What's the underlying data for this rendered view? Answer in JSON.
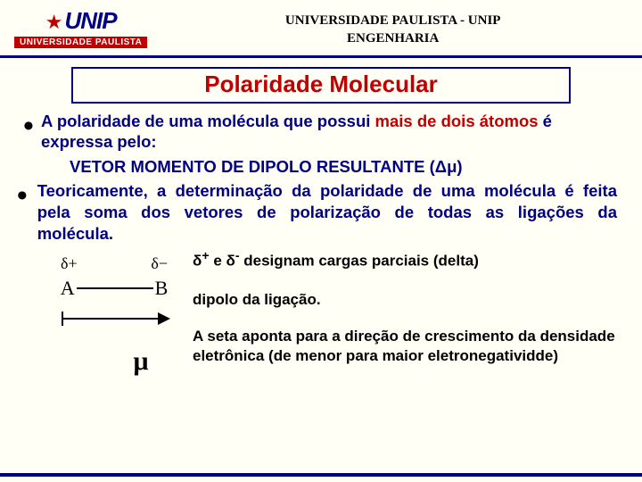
{
  "header": {
    "logo_text": "UNIP",
    "logo_sub": "UNIVERSIDADE PAULISTA",
    "line1": "UNIVERSIDADE PAULISTA - UNIP",
    "line2": "ENGENHARIA"
  },
  "title": "Polaridade Molecular",
  "bullet1": {
    "pre": "A polaridade de uma molécula que possui ",
    "hl": "mais de dois átomos",
    "post": " é expressa pelo:"
  },
  "vector_line": {
    "pre": "VETOR MOMENTO DE DIPOLO RESULTANTE   (",
    "sym": "Δμ",
    "post": ")"
  },
  "bullet2": "Teoricamente, a determinação da polaridade de uma molécula é feita pela soma dos vetores de polarização de todas as ligações da molécula.",
  "diagram": {
    "dplus": "δ+",
    "dminus": "δ−",
    "a": "A",
    "b": "B",
    "mu": "μ"
  },
  "right": {
    "l1_pre": "δ",
    "l1_plus": "+",
    "l1_mid": " e δ",
    "l1_minus": "-",
    "l1_post": " designam cargas parciais (delta)",
    "l2": "dipolo da ligação.",
    "l3": "A seta aponta para a direção de crescimento da densidade eletrônica (de menor para maior eletronegatividde)"
  },
  "colors": {
    "navy": "#000080",
    "red": "#c00000",
    "bg": "#fffff5"
  }
}
